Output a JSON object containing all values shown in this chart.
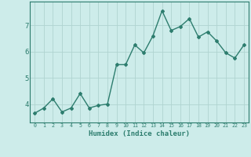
{
  "xlabel": "Humidex (Indice chaleur)",
  "x": [
    0,
    1,
    2,
    3,
    4,
    5,
    6,
    7,
    8,
    9,
    10,
    11,
    12,
    13,
    14,
    15,
    16,
    17,
    18,
    19,
    20,
    21,
    22,
    23
  ],
  "y": [
    3.65,
    3.85,
    4.2,
    3.7,
    3.85,
    4.4,
    3.85,
    3.95,
    4.0,
    5.5,
    5.5,
    6.25,
    5.95,
    6.6,
    7.55,
    6.8,
    6.95,
    7.25,
    6.55,
    6.75,
    6.4,
    5.95,
    5.75,
    6.25
  ],
  "line_color": "#2d7d6e",
  "marker": "D",
  "markersize": 2.0,
  "linewidth": 1.0,
  "bg_color": "#cdecea",
  "grid_color": "#b0d4d0",
  "tick_color": "#2d7d6e",
  "label_color": "#2d7d6e",
  "yticks": [
    4,
    5,
    6,
    7
  ],
  "ylim": [
    3.3,
    7.9
  ],
  "xlim": [
    -0.5,
    23.5
  ]
}
